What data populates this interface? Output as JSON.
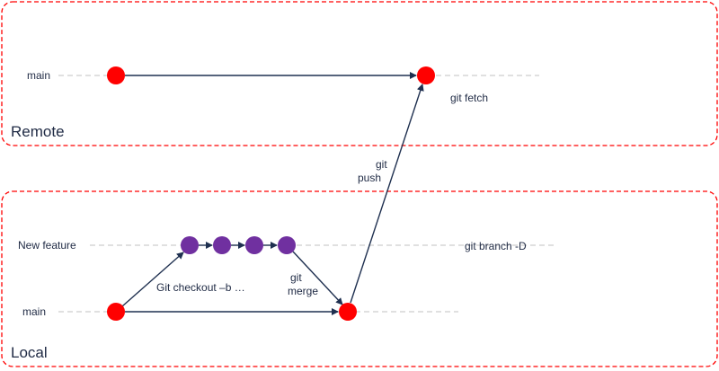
{
  "areas": {
    "remote": "Remote",
    "local": "Local"
  },
  "branches": {
    "remote_main": "main",
    "new_feature": "New feature",
    "local_main": "main"
  },
  "commands": {
    "checkout": "Git checkout –b …",
    "merge_line1": "git",
    "merge_line2": "merge",
    "push_line1": "git",
    "push_line2": "push",
    "fetch": "git fetch",
    "branch_delete": "git branch -D"
  },
  "colors": {
    "area_border": "#ff0000",
    "main_commit": "#ff0000",
    "feature_commit": "#7030a0",
    "arrow": "#1f3050",
    "track": "#c0c0c0"
  }
}
